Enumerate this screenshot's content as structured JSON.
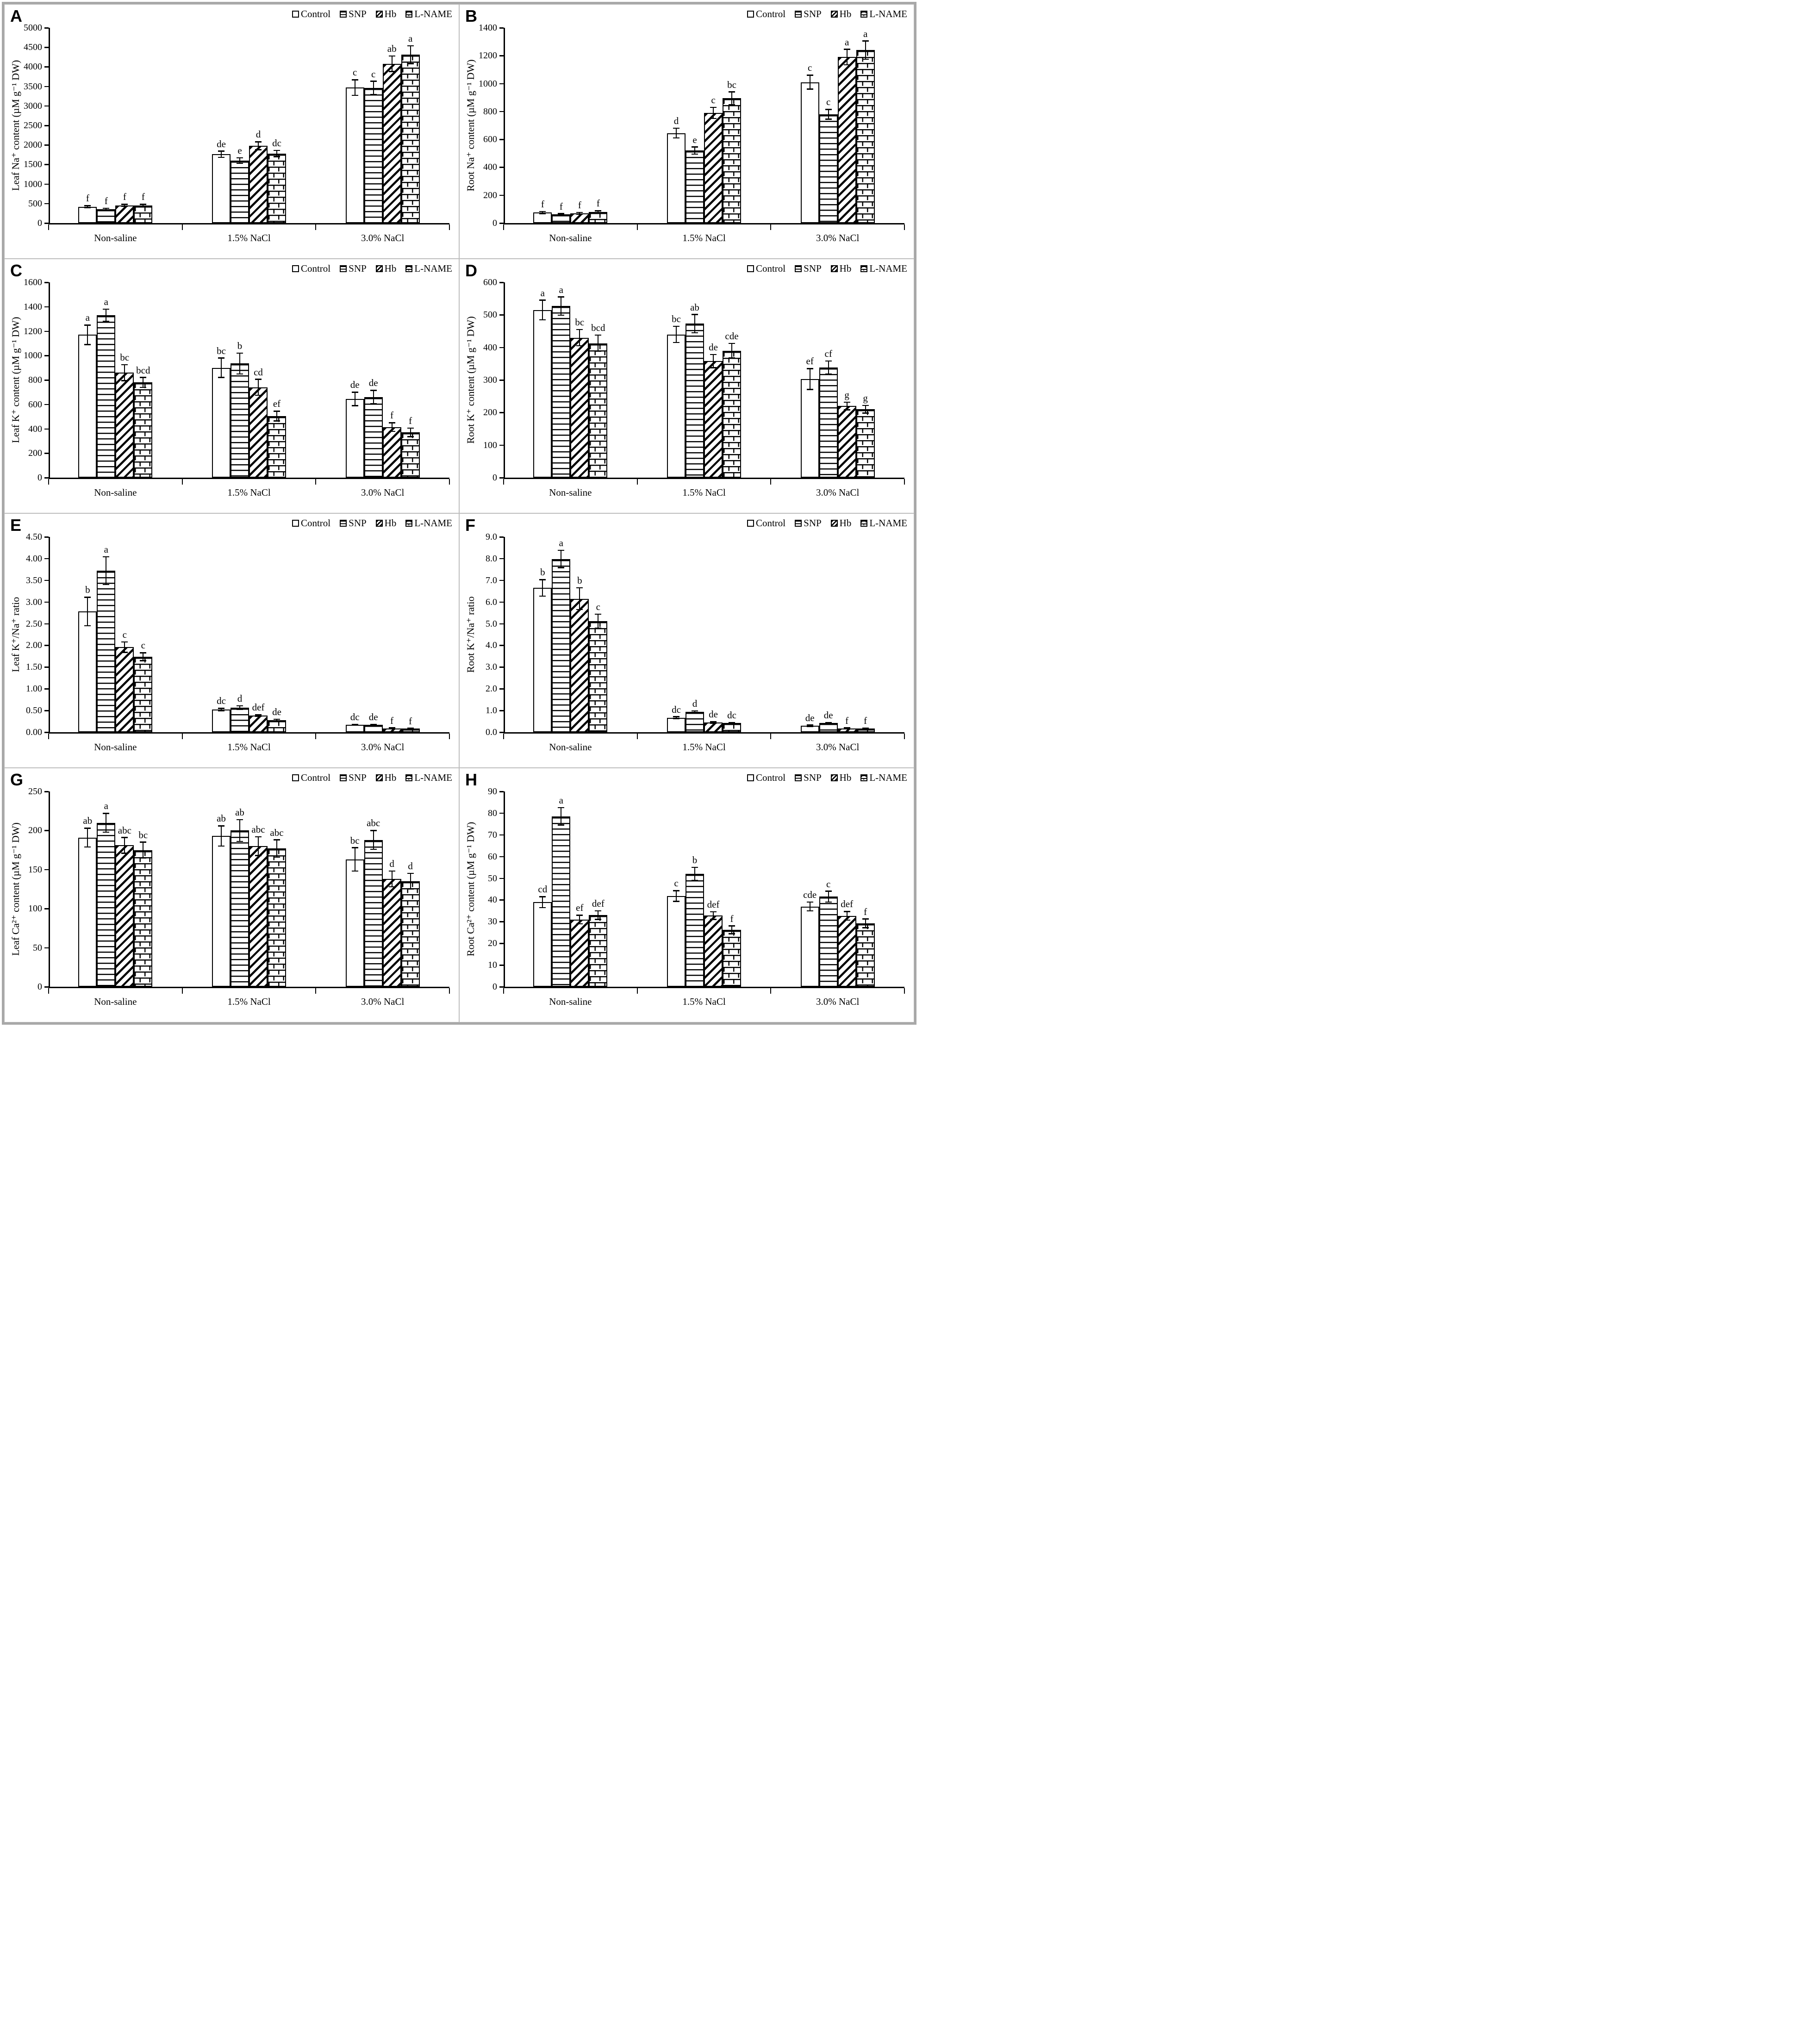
{
  "legend": {
    "labels": [
      "Control",
      "SNP",
      "Hb",
      "L-NAME"
    ],
    "patterns": [
      "open",
      "horizontal-lines",
      "diagonal-hatch",
      "brick"
    ]
  },
  "x_categories": [
    "Non-saline",
    "1.5% NaCl",
    "3.0% NaCl"
  ],
  "chart_data": [
    {
      "id": "A",
      "type": "bar",
      "ylabel": "Leaf Na⁺ content (µM g⁻¹ DW)",
      "yticks": [
        "0",
        "500",
        "1000",
        "1500",
        "2000",
        "2500",
        "3000",
        "3500",
        "4000",
        "4500",
        "5000"
      ],
      "categories": [
        "Non-saline",
        "1.5% NaCl",
        "3.0% NaCl"
      ],
      "series": [
        "Control",
        "SNP",
        "Hb",
        "L-NAME"
      ],
      "groups": [
        {
          "bars": [
            {
              "value": 420,
              "err": 25,
              "letter": "f"
            },
            {
              "value": 360,
              "err": 20,
              "letter": "f"
            },
            {
              "value": 455,
              "err": 25,
              "letter": "f"
            },
            {
              "value": 455,
              "err": 25,
              "letter": "f"
            }
          ]
        },
        {
          "bars": [
            {
              "value": 1760,
              "err": 80,
              "letter": "de"
            },
            {
              "value": 1600,
              "err": 70,
              "letter": "e"
            },
            {
              "value": 1980,
              "err": 100,
              "letter": "d"
            },
            {
              "value": 1780,
              "err": 80,
              "letter": "dc"
            }
          ]
        },
        {
          "bars": [
            {
              "value": 3470,
              "err": 200,
              "letter": "c"
            },
            {
              "value": 3460,
              "err": 170,
              "letter": "c"
            },
            {
              "value": 4080,
              "err": 200,
              "letter": "ab"
            },
            {
              "value": 4310,
              "err": 230,
              "letter": "a"
            }
          ]
        }
      ]
    },
    {
      "id": "B",
      "type": "bar",
      "ylabel": "Root Na⁺ content (µM g⁻¹ DW)",
      "yticks": [
        "0",
        "200",
        "400",
        "600",
        "800",
        "1000",
        "1200",
        "1400"
      ],
      "categories": [
        "Non-saline",
        "1.5% NaCl",
        "3.0% NaCl"
      ],
      "series": [
        "Control",
        "SNP",
        "Hb",
        "L-NAME"
      ],
      "groups": [
        {
          "bars": [
            {
              "value": 75,
              "err": 8,
              "letter": "f"
            },
            {
              "value": 62,
              "err": 6,
              "letter": "f"
            },
            {
              "value": 70,
              "err": 7,
              "letter": "f"
            },
            {
              "value": 80,
              "err": 8,
              "letter": "f"
            }
          ]
        },
        {
          "bars": [
            {
              "value": 645,
              "err": 35,
              "letter": "d"
            },
            {
              "value": 520,
              "err": 25,
              "letter": "e"
            },
            {
              "value": 790,
              "err": 40,
              "letter": "c"
            },
            {
              "value": 895,
              "err": 45,
              "letter": "bc"
            }
          ]
        },
        {
          "bars": [
            {
              "value": 1010,
              "err": 50,
              "letter": "c"
            },
            {
              "value": 780,
              "err": 35,
              "letter": "c"
            },
            {
              "value": 1190,
              "err": 55,
              "letter": "a"
            },
            {
              "value": 1240,
              "err": 65,
              "letter": "a"
            }
          ]
        }
      ]
    },
    {
      "id": "C",
      "type": "bar",
      "ylabel": "Leaf K⁺ content (µM g⁻¹ DW)",
      "yticks": [
        "0",
        "200",
        "400",
        "600",
        "800",
        "1000",
        "1200",
        "1400",
        "1600"
      ],
      "categories": [
        "Non-saline",
        "1.5% NaCl",
        "3.0% NaCl"
      ],
      "series": [
        "Control",
        "SNP",
        "Hb",
        "L-NAME"
      ],
      "groups": [
        {
          "bars": [
            {
              "value": 1170,
              "err": 80,
              "letter": "a"
            },
            {
              "value": 1330,
              "err": 50,
              "letter": "a"
            },
            {
              "value": 860,
              "err": 65,
              "letter": "bc"
            },
            {
              "value": 780,
              "err": 40,
              "letter": "bcd"
            }
          ]
        },
        {
          "bars": [
            {
              "value": 900,
              "err": 80,
              "letter": "bc"
            },
            {
              "value": 935,
              "err": 85,
              "letter": "b"
            },
            {
              "value": 740,
              "err": 65,
              "letter": "cd"
            },
            {
              "value": 505,
              "err": 40,
              "letter": "ef"
            }
          ]
        },
        {
          "bars": [
            {
              "value": 645,
              "err": 55,
              "letter": "de"
            },
            {
              "value": 660,
              "err": 55,
              "letter": "de"
            },
            {
              "value": 415,
              "err": 35,
              "letter": "f"
            },
            {
              "value": 370,
              "err": 35,
              "letter": "f"
            }
          ]
        }
      ]
    },
    {
      "id": "D",
      "type": "bar",
      "ylabel": "Root K⁺ content (µM g⁻¹ DW)",
      "yticks": [
        "0",
        "100",
        "200",
        "300",
        "400",
        "500",
        "600"
      ],
      "categories": [
        "Non-saline",
        "1.5% NaCl",
        "3.0% NaCl"
      ],
      "series": [
        "Control",
        "SNP",
        "Hb",
        "L-NAME"
      ],
      "groups": [
        {
          "bars": [
            {
              "value": 515,
              "err": 30,
              "letter": "a"
            },
            {
              "value": 527,
              "err": 28,
              "letter": "a"
            },
            {
              "value": 430,
              "err": 25,
              "letter": "bc"
            },
            {
              "value": 413,
              "err": 25,
              "letter": "bcd"
            }
          ]
        },
        {
          "bars": [
            {
              "value": 440,
              "err": 25,
              "letter": "bc"
            },
            {
              "value": 473,
              "err": 28,
              "letter": "ab"
            },
            {
              "value": 358,
              "err": 20,
              "letter": "de"
            },
            {
              "value": 390,
              "err": 22,
              "letter": "cde"
            }
          ]
        },
        {
          "bars": [
            {
              "value": 303,
              "err": 32,
              "letter": "ef"
            },
            {
              "value": 338,
              "err": 20,
              "letter": "cf"
            },
            {
              "value": 220,
              "err": 12,
              "letter": "g"
            },
            {
              "value": 210,
              "err": 12,
              "letter": "g"
            }
          ]
        }
      ]
    },
    {
      "id": "E",
      "type": "bar",
      "ylabel": "Leaf K⁺/Na⁺ ratio",
      "yticks": [
        "0.00",
        "0.50",
        "1.00",
        "1.50",
        "2.00",
        "2.50",
        "3.00",
        "3.50",
        "4.00",
        "4.50"
      ],
      "categories": [
        "Non-saline",
        "1.5% NaCl",
        "3.0% NaCl"
      ],
      "series": [
        "Control",
        "SNP",
        "Hb",
        "L-NAME"
      ],
      "groups": [
        {
          "bars": [
            {
              "value": 2.78,
              "err": 0.33,
              "letter": "b"
            },
            {
              "value": 3.72,
              "err": 0.32,
              "letter": "a"
            },
            {
              "value": 1.96,
              "err": 0.12,
              "letter": "c"
            },
            {
              "value": 1.74,
              "err": 0.09,
              "letter": "c"
            }
          ]
        },
        {
          "bars": [
            {
              "value": 0.52,
              "err": 0.03,
              "letter": "dc"
            },
            {
              "value": 0.57,
              "err": 0.04,
              "letter": "d"
            },
            {
              "value": 0.38,
              "err": 0.02,
              "letter": "def"
            },
            {
              "value": 0.28,
              "err": 0.02,
              "letter": "de"
            }
          ]
        },
        {
          "bars": [
            {
              "value": 0.17,
              "err": 0.01,
              "letter": "dc"
            },
            {
              "value": 0.17,
              "err": 0.01,
              "letter": "de"
            },
            {
              "value": 0.09,
              "err": 0.01,
              "letter": "f"
            },
            {
              "value": 0.08,
              "err": 0.01,
              "letter": "f"
            }
          ]
        }
      ]
    },
    {
      "id": "F",
      "type": "bar",
      "ylabel": "Root K⁺/Na⁺ ratio",
      "yticks": [
        "0.0",
        "1.0",
        "2.0",
        "3.0",
        "4.0",
        "5.0",
        "6.0",
        "7.0",
        "8.0",
        "9.0"
      ],
      "categories": [
        "Non-saline",
        "1.5% NaCl",
        "3.0% NaCl"
      ],
      "series": [
        "Control",
        "SNP",
        "Hb",
        "L-NAME"
      ],
      "groups": [
        {
          "bars": [
            {
              "value": 6.65,
              "err": 0.38,
              "letter": "b"
            },
            {
              "value": 7.98,
              "err": 0.4,
              "letter": "a"
            },
            {
              "value": 6.15,
              "err": 0.5,
              "letter": "b"
            },
            {
              "value": 5.12,
              "err": 0.32,
              "letter": "c"
            }
          ]
        },
        {
          "bars": [
            {
              "value": 0.67,
              "err": 0.04,
              "letter": "dc"
            },
            {
              "value": 0.93,
              "err": 0.05,
              "letter": "d"
            },
            {
              "value": 0.45,
              "err": 0.03,
              "letter": "de"
            },
            {
              "value": 0.42,
              "err": 0.03,
              "letter": "dc"
            }
          ]
        },
        {
          "bars": [
            {
              "value": 0.3,
              "err": 0.03,
              "letter": "de"
            },
            {
              "value": 0.42,
              "err": 0.03,
              "letter": "de"
            },
            {
              "value": 0.18,
              "err": 0.02,
              "letter": "f"
            },
            {
              "value": 0.17,
              "err": 0.02,
              "letter": "f"
            }
          ]
        }
      ]
    },
    {
      "id": "G",
      "type": "bar",
      "ylabel": "Leaf Ca²⁺ content (µM g⁻¹ DW)",
      "yticks": [
        "0",
        "50",
        "100",
        "150",
        "200",
        "250"
      ],
      "categories": [
        "Non-saline",
        "1.5% NaCl",
        "3.0% NaCl"
      ],
      "series": [
        "Control",
        "SNP",
        "Hb",
        "L-NAME"
      ],
      "groups": [
        {
          "bars": [
            {
              "value": 191,
              "err": 12,
              "letter": "ab"
            },
            {
              "value": 210,
              "err": 12,
              "letter": "a"
            },
            {
              "value": 181,
              "err": 10,
              "letter": "abc"
            },
            {
              "value": 175,
              "err": 10,
              "letter": "bc"
            }
          ]
        },
        {
          "bars": [
            {
              "value": 193,
              "err": 13,
              "letter": "ab"
            },
            {
              "value": 200,
              "err": 14,
              "letter": "ab"
            },
            {
              "value": 180,
              "err": 12,
              "letter": "abc"
            },
            {
              "value": 177,
              "err": 11,
              "letter": "abc"
            }
          ]
        },
        {
          "bars": [
            {
              "value": 163,
              "err": 15,
              "letter": "bc"
            },
            {
              "value": 188,
              "err": 12,
              "letter": "abc"
            },
            {
              "value": 138,
              "err": 10,
              "letter": "d"
            },
            {
              "value": 135,
              "err": 10,
              "letter": "d"
            }
          ]
        }
      ]
    },
    {
      "id": "H",
      "type": "bar",
      "ylabel": "Root Ca²⁺ content (µM g⁻¹ DW)",
      "yticks": [
        "0",
        "10",
        "20",
        "30",
        "40",
        "50",
        "60",
        "70",
        "80",
        "90"
      ],
      "categories": [
        "Non-saline",
        "1.5% NaCl",
        "3.0% NaCl"
      ],
      "series": [
        "Control",
        "SNP",
        "Hb",
        "L-NAME"
      ],
      "groups": [
        {
          "bars": [
            {
              "value": 39,
              "err": 2.5,
              "letter": "cd"
            },
            {
              "value": 78.5,
              "err": 4,
              "letter": "a"
            },
            {
              "value": 31,
              "err": 2,
              "letter": "ef"
            },
            {
              "value": 33,
              "err": 2,
              "letter": "def"
            }
          ]
        },
        {
          "bars": [
            {
              "value": 41.8,
              "err": 2.5,
              "letter": "c"
            },
            {
              "value": 52,
              "err": 3,
              "letter": "b"
            },
            {
              "value": 32.8,
              "err": 1.8,
              "letter": "def"
            },
            {
              "value": 26.2,
              "err": 1.8,
              "letter": "f"
            }
          ]
        },
        {
          "bars": [
            {
              "value": 37,
              "err": 2,
              "letter": "cde"
            },
            {
              "value": 41.5,
              "err": 2.5,
              "letter": "c"
            },
            {
              "value": 32.7,
              "err": 2,
              "letter": "def"
            },
            {
              "value": 29.2,
              "err": 2,
              "letter": "f"
            }
          ]
        }
      ]
    }
  ]
}
